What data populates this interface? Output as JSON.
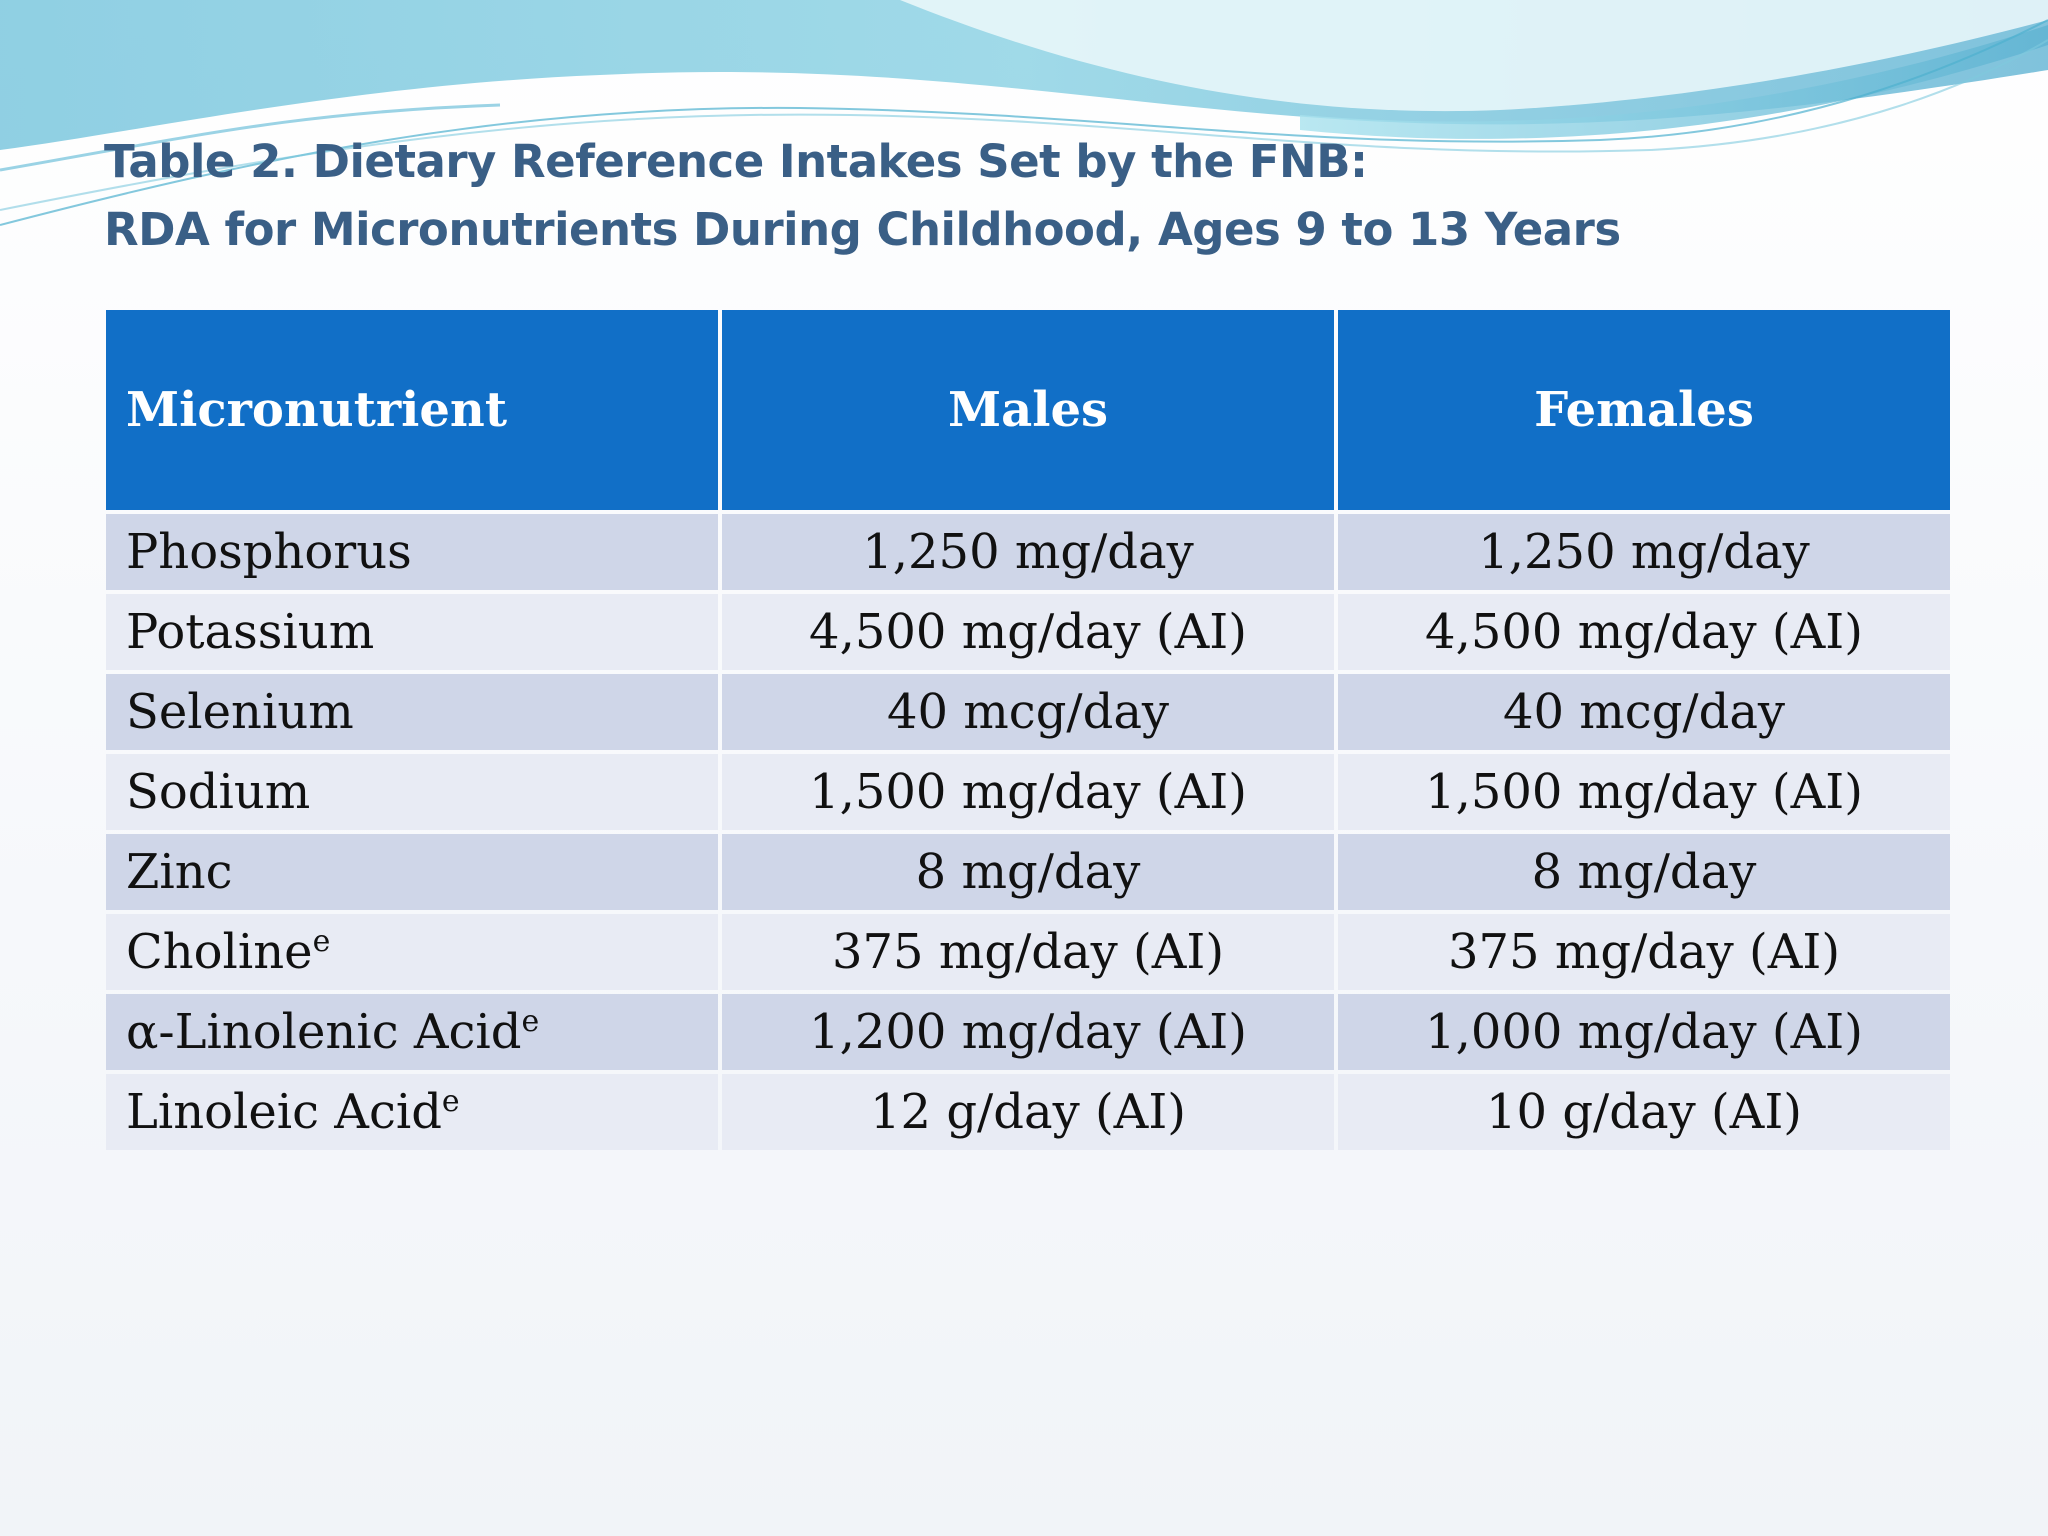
{
  "slide": {
    "title_line1": "Table 2. Dietary Reference Intakes Set by the FNB:",
    "title_line2": "RDA for Micronutrients During Childhood, Ages 9 to 13 Years"
  },
  "table": {
    "headers": [
      "Micronutrient",
      "Males",
      "Females"
    ],
    "rows": [
      {
        "nutrient": "Phosphorus",
        "sup": "",
        "males": "1,250 mg/day",
        "females": "1,250 mg/day"
      },
      {
        "nutrient": "Potassium",
        "sup": "",
        "males": "4,500 mg/day (AI)",
        "females": "4,500 mg/day (AI)"
      },
      {
        "nutrient": "Selenium",
        "sup": "",
        "males": "40 mcg/day",
        "females": "40 mcg/day"
      },
      {
        "nutrient": "Sodium",
        "sup": "",
        "males": "1,500 mg/day (AI)",
        "females": "1,500 mg/day (AI)"
      },
      {
        "nutrient": "Zinc",
        "sup": "",
        "males": "8 mg/day",
        "females": "8 mg/day"
      },
      {
        "nutrient": "Choline",
        "sup": "e",
        "males": "375 mg/day (AI)",
        "females": "375 mg/day (AI)"
      },
      {
        "nutrient": "α-Linolenic Acid",
        "sup": "e",
        "males": "1,200 mg/day (AI)",
        "females": "1,000 mg/day (AI)"
      },
      {
        "nutrient": "Linoleic Acid",
        "sup": "e",
        "males": "12 g/day (AI)",
        "females": "10 g/day (AI)"
      }
    ]
  },
  "colors": {
    "header_bg": "#116fc7",
    "row_odd": "#cfd6e8",
    "row_even": "#e8ebf4",
    "title_color": "#3a5f86"
  }
}
